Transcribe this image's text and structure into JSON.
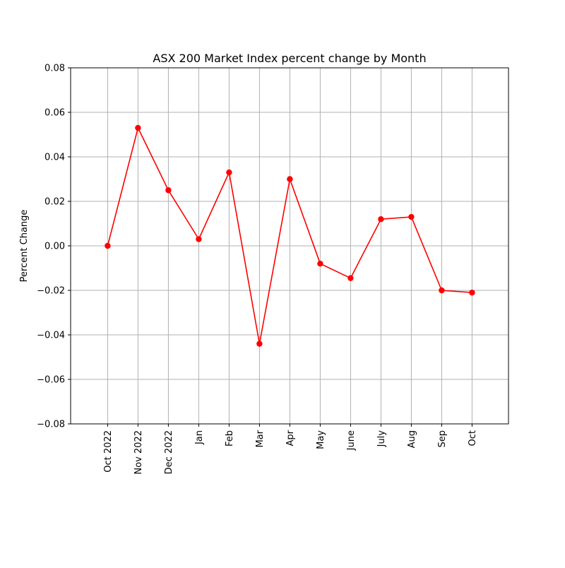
{
  "chart_data": {
    "type": "line",
    "title": "ASX 200 Market Index percent change by Month",
    "xlabel": "",
    "ylabel": "Percent Change",
    "categories": [
      "Oct 2022",
      "Nov 2022",
      "Dec 2022",
      "Jan",
      "Feb",
      "Mar",
      "Apr",
      "May",
      "June",
      "July",
      "Aug",
      "Sep",
      "Oct"
    ],
    "series": [
      {
        "values": [
          0.0,
          0.053,
          0.025,
          0.003,
          0.033,
          -0.044,
          0.03,
          -0.008,
          -0.0145,
          0.012,
          0.013,
          -0.02,
          -0.021
        ]
      }
    ],
    "ylim": [
      -0.08,
      0.08
    ],
    "yticks": [
      -0.08,
      -0.06,
      -0.04,
      -0.02,
      0.0,
      0.02,
      0.04,
      0.06,
      0.08
    ],
    "ytick_labels": [
      "−0.08",
      "−0.06",
      "−0.04",
      "−0.02",
      "0.00",
      "0.02",
      "0.04",
      "0.06",
      "0.08"
    ],
    "grid": true,
    "legend": "none",
    "colors": {
      "line": "#ff0000",
      "marker": "#ff0000",
      "grid": "#b0b0b0",
      "axes": "#000000"
    }
  }
}
